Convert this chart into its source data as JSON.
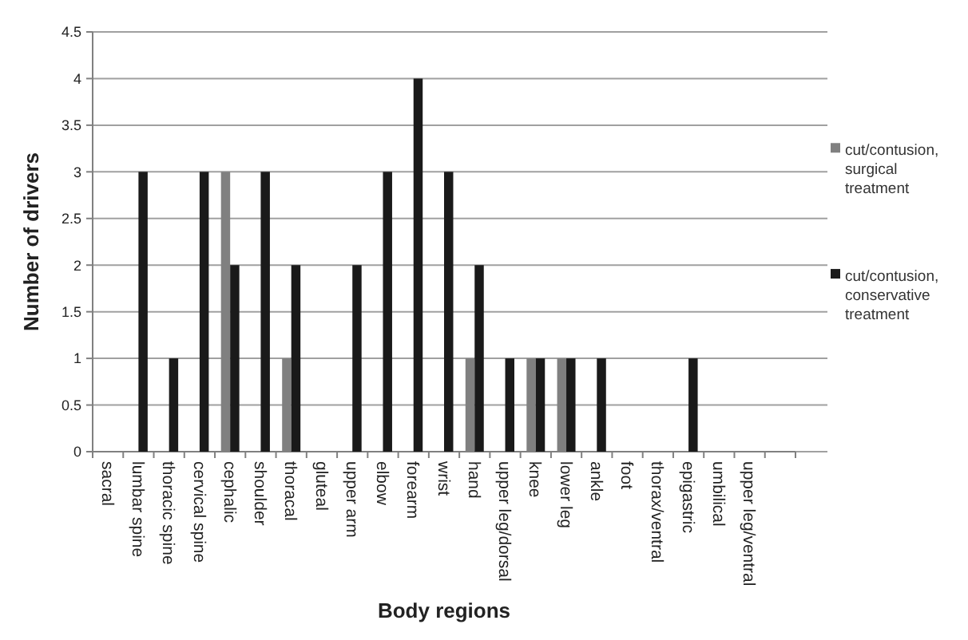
{
  "chart_data": {
    "type": "bar",
    "xlabel": "Body regions",
    "ylabel": "Number of drivers",
    "categories": [
      "sacral",
      "lumbar spine",
      "thoracic spine",
      "cervical spine",
      "cephalic",
      "shoulder",
      "thoracal",
      "gluteal",
      "upper arm",
      "elbow",
      "forearm",
      "wrist",
      "hand",
      "upper leg/dorsal",
      "knee",
      "lower leg",
      "ankle",
      "foot",
      "thorax/ventral",
      "epigastric",
      "umbilical",
      "upper leg/ventral",
      null
    ],
    "series": [
      {
        "name": "cut/contusion, surgical treatment",
        "color": "#808080",
        "values": [
          0,
          0,
          0,
          0,
          3,
          0,
          1,
          0,
          0,
          0,
          0,
          0,
          1,
          0,
          1,
          1,
          0,
          0,
          0,
          0,
          0,
          0,
          0
        ]
      },
      {
        "name": "cut/contusion, conservative treatment",
        "color": "#1a1a1a",
        "values": [
          0,
          3,
          1,
          3,
          2,
          3,
          2,
          0,
          2,
          3,
          4,
          3,
          2,
          1,
          1,
          1,
          1,
          0,
          0,
          1,
          0,
          0,
          0
        ]
      }
    ],
    "ylim": [
      0,
      4.5
    ],
    "yticks": [
      0,
      0.5,
      1,
      1.5,
      2,
      2.5,
      3,
      3.5,
      4,
      4.5
    ],
    "grid": "y",
    "legend": "right"
  }
}
